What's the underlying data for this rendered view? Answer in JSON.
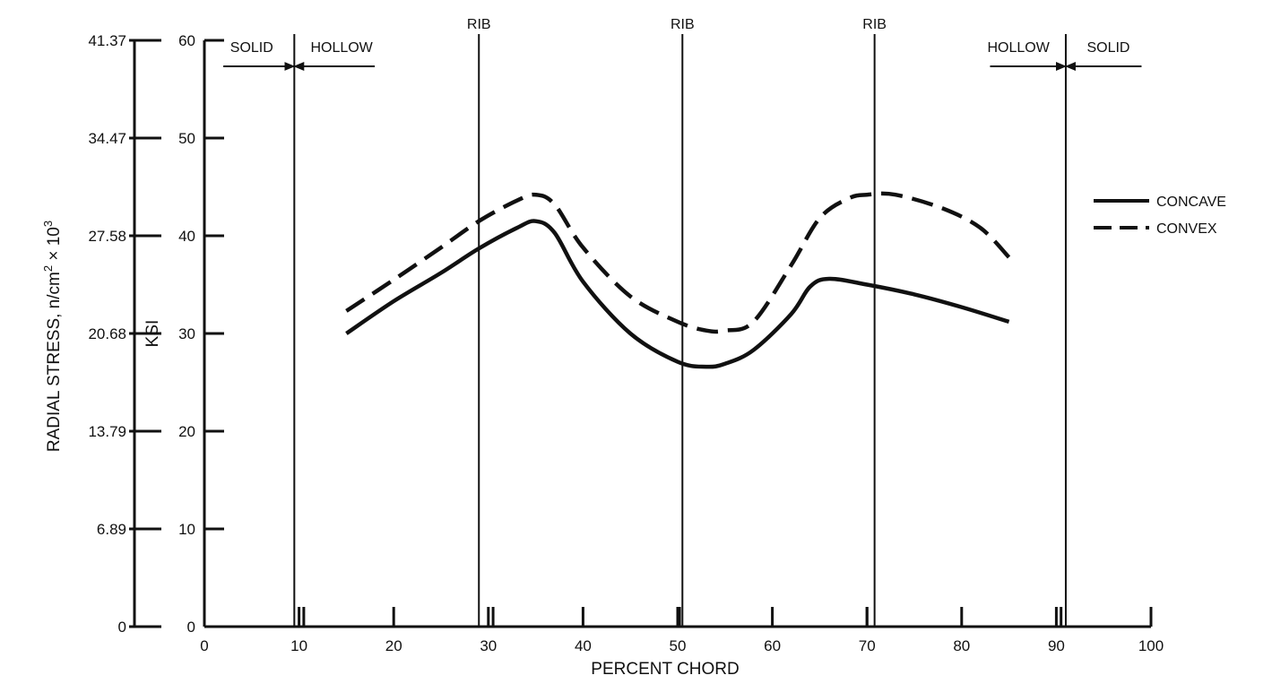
{
  "chart_data": {
    "type": "line",
    "xlabel": "PERCENT CHORD",
    "ylabel": "KSI",
    "y2label": "RADIAL STRESS, n/cm",
    "y2label_sup1": "2",
    "y2label_mid": " × 10",
    "y2label_sup2": "3",
    "xlim": [
      0,
      100
    ],
    "ylim": [
      0,
      60
    ],
    "x_ticks": [
      0,
      10,
      20,
      30,
      40,
      50,
      60,
      70,
      80,
      90,
      100
    ],
    "x_tick_labels": [
      "0",
      "10",
      "20",
      "30",
      "40",
      "50",
      "60",
      "70",
      "80",
      "90",
      "100"
    ],
    "y_ticks": [
      0,
      10,
      20,
      30,
      40,
      50,
      60
    ],
    "y_tick_labels": [
      "0",
      "10",
      "20",
      "30",
      "40",
      "50",
      "60"
    ],
    "y2_ticks": [
      0,
      10,
      20,
      30,
      40,
      50,
      60
    ],
    "y2_tick_labels": [
      "0",
      "6.89",
      "13.79",
      "20.68",
      "27.58",
      "34.47",
      "41.37"
    ],
    "grid": false,
    "legend_position": "right",
    "series": [
      {
        "name": "CONCAVE",
        "style": "solid",
        "x": [
          15,
          20,
          25,
          29,
          33,
          35,
          37,
          40,
          45,
          50,
          53,
          55,
          58,
          62,
          64,
          66,
          70,
          75,
          80,
          85
        ],
        "y": [
          30,
          33.3,
          36.2,
          38.7,
          40.8,
          41.5,
          40.3,
          35.3,
          30,
          27.1,
          26.6,
          26.9,
          28.3,
          32,
          34.8,
          35.6,
          35,
          34,
          32.7,
          31.2
        ]
      },
      {
        "name": "CONVEX",
        "style": "dashed",
        "x": [
          15,
          20,
          25,
          29,
          33,
          35,
          37,
          40,
          45,
          50,
          53,
          55,
          58,
          62,
          65,
          68,
          70,
          73,
          78,
          82,
          85
        ],
        "y": [
          32.3,
          35.5,
          38.8,
          41.5,
          43.6,
          44.2,
          43.2,
          38.8,
          33.8,
          31.2,
          30.3,
          30.3,
          31.2,
          37,
          41.8,
          43.8,
          44.2,
          44.2,
          42.8,
          40.8,
          37.8
        ]
      }
    ],
    "vertical_lines": [
      {
        "x": 9.5,
        "label": ""
      },
      {
        "x": 29,
        "label": "RIB"
      },
      {
        "x": 50.5,
        "label": "RIB"
      },
      {
        "x": 70.8,
        "label": "RIB"
      },
      {
        "x": 91,
        "label": ""
      }
    ],
    "extra_ticks": [
      10.5,
      30.5,
      50.2,
      70,
      90.5
    ],
    "region_annotations": [
      {
        "text": "SOLID",
        "x": 5,
        "arrow_from": 2,
        "arrow_to": 9.5
      },
      {
        "text": "HOLLOW",
        "x": 14.5,
        "arrow_from": 18,
        "arrow_to": 9.5
      },
      {
        "text": "HOLLOW",
        "x": 86,
        "arrow_from": 83,
        "arrow_to": 91
      },
      {
        "text": "SOLID",
        "x": 95.5,
        "arrow_from": 99,
        "arrow_to": 91
      }
    ],
    "colors": {
      "line": "#111111"
    }
  }
}
